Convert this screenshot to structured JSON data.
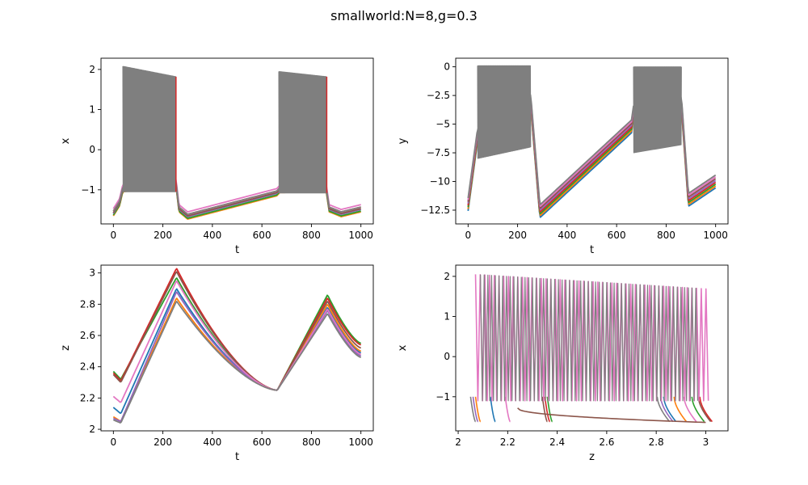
{
  "figure": {
    "title": "smallworld:N=8,g=0.3"
  },
  "series_colors": [
    "#1f77b4",
    "#ff7f0e",
    "#2ca02c",
    "#d62728",
    "#9467bd",
    "#8c564b",
    "#e377c2",
    "#7f7f7f"
  ],
  "chart_data": [
    {
      "id": "x-vs-t",
      "type": "line",
      "xlabel": "t",
      "ylabel": "x",
      "xlim": [
        -50,
        1050
      ],
      "ylim": [
        -1.85,
        2.28
      ],
      "xticks": [
        0,
        200,
        400,
        600,
        800,
        1000
      ],
      "yticks": [
        -1,
        0,
        1,
        2
      ],
      "grid": false,
      "bursts": [
        {
          "t_start": 38,
          "t_end": 253,
          "x_max_start": 2.08,
          "x_max_end": 1.82,
          "x_min": -1.05
        },
        {
          "t_start": 668,
          "t_end": 862,
          "x_max_start": 1.95,
          "x_max_end": 1.82,
          "x_min": -1.08
        }
      ],
      "envelope_points": {
        "t": [
          0,
          25,
          38,
          100,
          253,
          265,
          300,
          660,
          672,
          860,
          872,
          920,
          1000
        ],
        "lower": [
          -1.6,
          -1.35,
          -1.0,
          -0.95,
          -0.85,
          -1.5,
          -1.68,
          -1.1,
          -1.02,
          -1.0,
          -1.5,
          -1.62,
          -1.5
        ]
      }
    },
    {
      "id": "y-vs-t",
      "type": "line",
      "xlabel": "t",
      "ylabel": "y",
      "xlim": [
        -50,
        1050
      ],
      "ylim": [
        -13.7,
        0.75
      ],
      "xticks": [
        0,
        200,
        400,
        600,
        800,
        1000
      ],
      "yticks": [
        -12.5,
        -10.0,
        -7.5,
        -5.0,
        -2.5,
        0.0
      ],
      "grid": false,
      "bursts": [
        {
          "t_start": 38,
          "t_end": 253,
          "y_max": 0.1,
          "y_min_start": -8.0,
          "y_min_end": -7.0
        },
        {
          "t_start": 668,
          "t_end": 862,
          "y_max": 0.0,
          "y_min_start": -7.5,
          "y_min_end": -6.8
        }
      ],
      "envelope_points": {
        "t": [
          0,
          38,
          253,
          290,
          660,
          668,
          862,
          890,
          1000
        ],
        "y": [
          -12.0,
          -6.0,
          -3.0,
          -12.6,
          -5.2,
          -4.0,
          -3.2,
          -11.6,
          -10.0
        ]
      }
    },
    {
      "id": "z-vs-t",
      "type": "line",
      "xlabel": "t",
      "ylabel": "z",
      "xlim": [
        -50,
        1050
      ],
      "ylim": [
        1.99,
        3.05
      ],
      "xticks": [
        0,
        200,
        400,
        600,
        800,
        1000
      ],
      "yticks": [
        2.0,
        2.2,
        2.4,
        2.6,
        2.8,
        3.0
      ],
      "grid": false,
      "series_points": {
        "t": [
          0,
          30,
          255,
          662,
          865,
          1000
        ],
        "z": [
          [
            2.14,
            2.1,
            2.9,
            2.25,
            2.78,
            2.49
          ],
          [
            2.08,
            2.05,
            2.84,
            2.25,
            2.8,
            2.5
          ],
          [
            2.37,
            2.32,
            2.97,
            2.25,
            2.86,
            2.55
          ],
          [
            2.36,
            2.31,
            3.03,
            2.25,
            2.84,
            2.54
          ],
          [
            2.07,
            2.05,
            2.88,
            2.25,
            2.76,
            2.47
          ],
          [
            2.35,
            2.3,
            3.01,
            2.25,
            2.82,
            2.52
          ],
          [
            2.21,
            2.17,
            2.95,
            2.25,
            2.77,
            2.48
          ],
          [
            2.06,
            2.04,
            2.82,
            2.25,
            2.74,
            2.46
          ]
        ]
      }
    },
    {
      "id": "x-vs-z",
      "type": "line",
      "xlabel": "z",
      "ylabel": "x",
      "xlim": [
        1.99,
        3.09
      ],
      "ylim": [
        -1.85,
        2.28
      ],
      "xticks": [
        2.0,
        2.2,
        2.4,
        2.6,
        2.8,
        3.0
      ],
      "yticks": [
        -1,
        0,
        1,
        2
      ],
      "grid": false,
      "oscillation_band": {
        "z_start": 2.07,
        "z_end": 3.02,
        "x_max_start": 2.05,
        "x_max_end": 1.68,
        "x_min": -1.1
      },
      "approach_curves_z_start": [
        2.15,
        2.09,
        2.38,
        2.37,
        2.08,
        2.36,
        2.21,
        2.07
      ],
      "exit_curves_z": [
        2.88,
        2.92,
        2.99,
        3.02,
        2.86,
        3.01,
        2.95,
        2.84
      ]
    }
  ]
}
